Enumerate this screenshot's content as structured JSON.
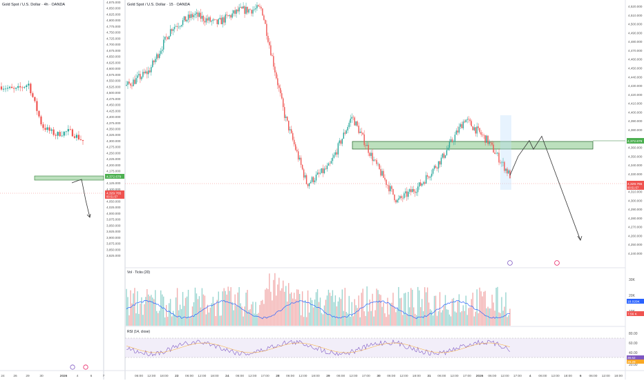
{
  "colors": {
    "up": "#26a69a",
    "down": "#ef5350",
    "zone_fill": "#a5d6a7",
    "zone_stroke": "#2e7d32",
    "vol_ma": "#2962ff",
    "rsi": "#7e57c2",
    "rsi_band": "#ede7f6",
    "axis_text": "#555555",
    "grid": "#f0f3fa"
  },
  "left_panel": {
    "title": "Gold Spot / U.S. Dollar · 4h · OANDA",
    "price_axis": [
      "4,875.000",
      "4,850.000",
      "4,825.000",
      "4,800.000",
      "4,775.000",
      "4,750.000",
      "4,725.000",
      "4,700.000",
      "4,675.000",
      "4,650.000",
      "4,625.000",
      "4,600.000",
      "4,575.000",
      "4,550.000",
      "4,525.000",
      "4,500.000",
      "4,475.000",
      "4,450.000",
      "4,425.000",
      "4,400.000",
      "4,375.000",
      "4,350.000",
      "4,325.000",
      "4,300.000",
      "4,275.000",
      "4,250.000",
      "4,225.000",
      "4,200.000",
      "4,175.000",
      "4,150.000",
      "4,125.000",
      "4,100.000",
      "4,075.000",
      "4,050.000",
      "4,025.000",
      "4,000.000",
      "3,975.000",
      "3,950.000",
      "3,925.000",
      "3,900.000",
      "3,875.000",
      "3,850.000",
      "3,825.000"
    ],
    "zone_label": "4,372.679",
    "price_label": "4,329.765",
    "price_label_sub": "00:51:57",
    "x_axis": [
      "24",
      "26",
      "29",
      "30",
      "2026",
      "4",
      "6",
      "7"
    ]
  },
  "right_panel": {
    "title": "Gold Spot / U.S. Dollar · 15 · OANDA",
    "price_axis": [
      "4,520.000",
      "4,510.000",
      "4,500.000",
      "4,490.000",
      "4,480.000",
      "4,470.000",
      "4,460.000",
      "4,450.000",
      "4,440.000",
      "4,430.000",
      "4,420.000",
      "4,410.000",
      "4,400.000",
      "4,390.000",
      "4,380.000",
      "4,370.000",
      "4,360.000",
      "4,350.000",
      "4,340.000",
      "4,330.000",
      "4,320.000",
      "4,310.000",
      "4,300.000",
      "4,290.000",
      "4,280.000",
      "4,270.000",
      "4,260.000",
      "4,250.000",
      "4,240.000"
    ],
    "zone_label": "4,372.679",
    "price_label": "4,329.765",
    "price_label_sub": "00:51:57",
    "x_axis": [
      "06:00",
      "12:00",
      "18:00",
      "23",
      "06:00",
      "12:00",
      "18:00",
      "24",
      "06:00",
      "12:00",
      "17:00",
      "28",
      "06:00",
      "12:00",
      "18:00",
      "29",
      "06:00",
      "12:00",
      "17:00",
      "30",
      "06:00",
      "12:00",
      "18:00",
      "31",
      "06:00",
      "12:00",
      "17:00",
      "2026",
      "06:00",
      "12:00",
      "17:00",
      "4",
      "06:00",
      "12:00",
      "18:00",
      "6",
      "06:00",
      "12:00",
      "18:00"
    ],
    "volume": {
      "title": "Vol · Ticks (20)",
      "axis": [
        "30K",
        "20K",
        "10K"
      ],
      "label_blue": "18.029K",
      "label_red": "7.56 K"
    },
    "rsi": {
      "title": "RSI (14, close)",
      "axis": [
        "80.00",
        "60.00",
        "40.00",
        "20.00"
      ],
      "label1": "38.62",
      "label2": "29.29"
    }
  },
  "chart_data": [
    {
      "type": "line",
      "title": "Gold Spot / U.S. Dollar · 4h · OANDA",
      "xlabel": "",
      "ylabel": "",
      "x": [
        "24",
        "26",
        "29",
        "30",
        "2026",
        "4",
        "6"
      ],
      "series": [
        {
          "values": [
            4525,
            4510,
            4535,
            4360,
            4325,
            4340,
            4300
          ]
        }
      ],
      "zone": {
        "low": 4345,
        "high": 4375
      },
      "ylim": [
        3825,
        4875
      ]
    },
    {
      "type": "line",
      "title": "Gold Spot / U.S. Dollar · 15 · OANDA",
      "xlabel": "",
      "ylabel": "",
      "x": [
        "22 06:00",
        "22 18:00",
        "23 12:00",
        "24",
        "24 12:00",
        "28",
        "28 12:00",
        "29",
        "29 06:00",
        "29 12:00",
        "30",
        "30 18:00",
        "31 06:00",
        "31 18:00",
        "2026 06:00",
        "2026 12:00",
        "2026 17:00",
        "4"
      ],
      "series": [
        {
          "values": [
            4433,
            4450,
            4500,
            4515,
            4505,
            4520,
            4522,
            4400,
            4320,
            4340,
            4398,
            4345,
            4300,
            4318,
            4350,
            4395,
            4370,
            4329.765
          ]
        }
      ],
      "zone": {
        "low": 4367,
        "high": 4378
      },
      "projection": [
        4329.765,
        4352,
        4370,
        4360,
        4375,
        4255
      ],
      "ylim": [
        4240,
        4525
      ]
    }
  ]
}
